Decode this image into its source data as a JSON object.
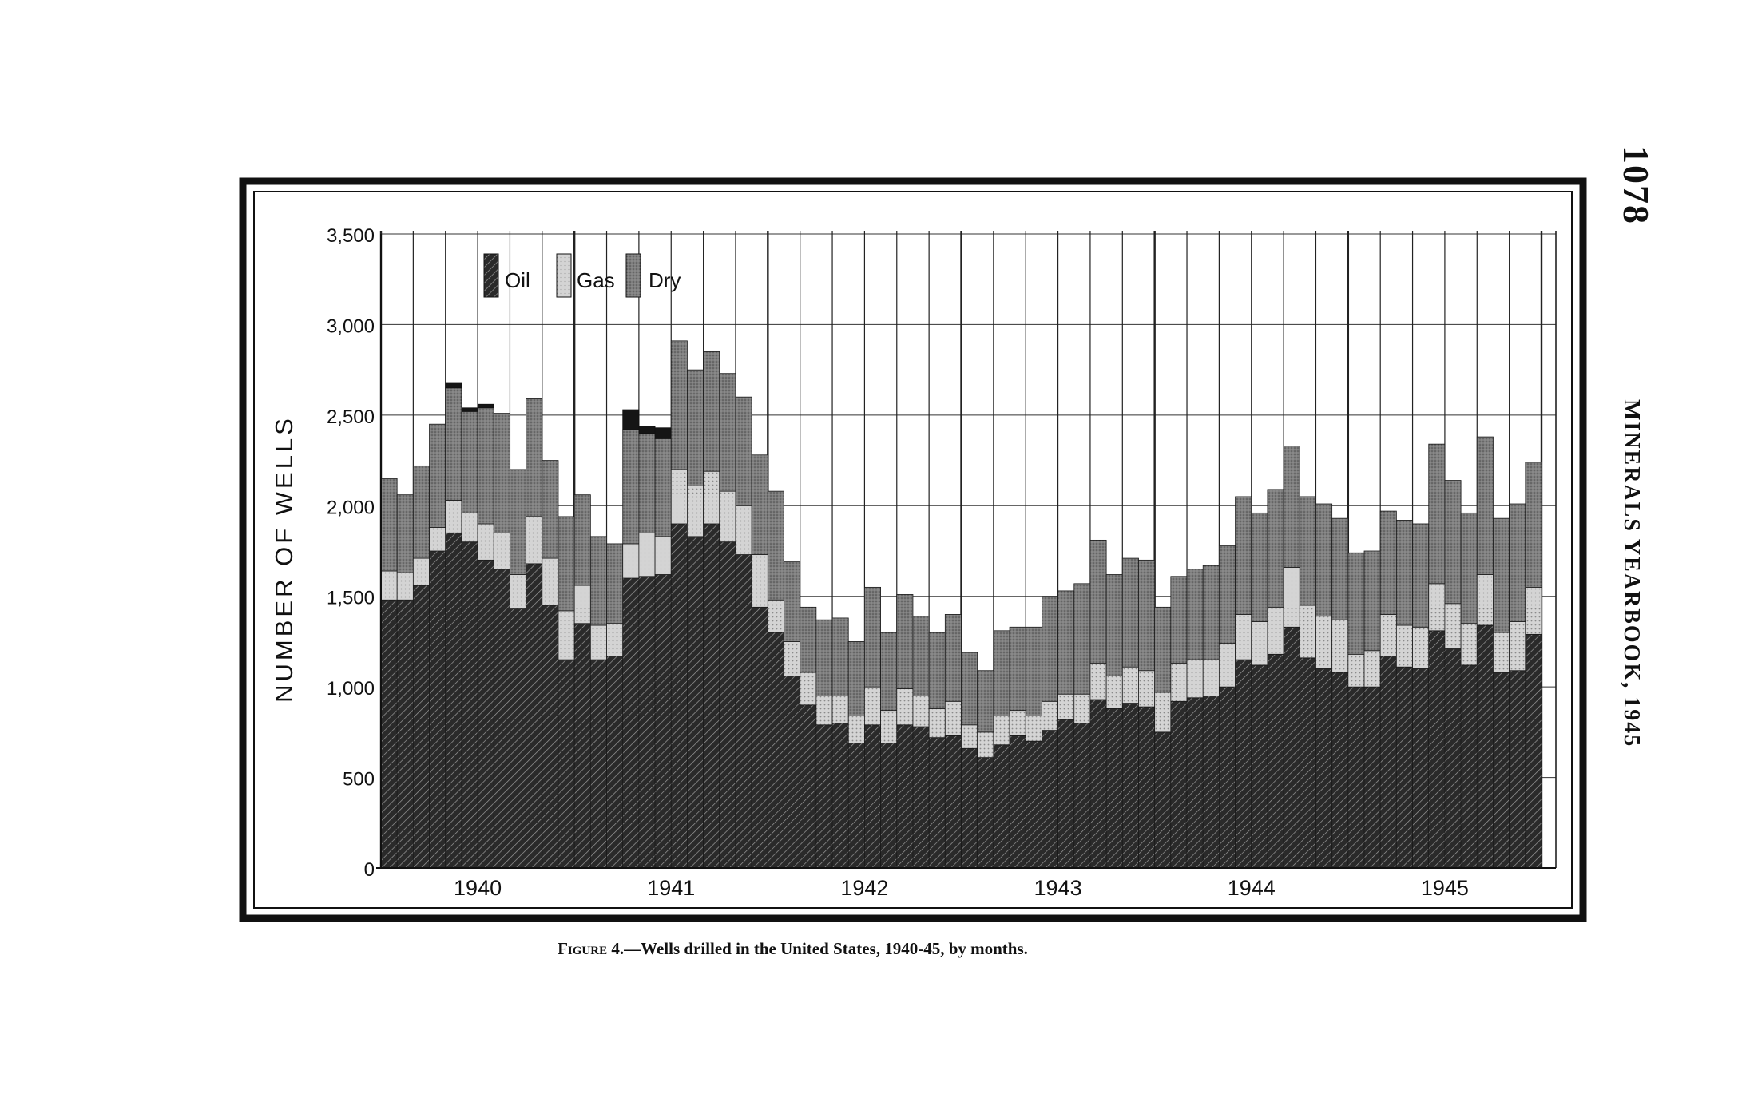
{
  "page": {
    "page_number": "1078",
    "running_head": "MINERALS YEARBOOK, 1945",
    "caption_label": "Figure 4.",
    "caption_text": "—Wells drilled in the United States, 1940-45, by months."
  },
  "colors": {
    "oil": "#1a1a1a",
    "gas": "#c8c8c8",
    "dry": "#777777",
    "frame": "#111111",
    "grid": "#222222"
  },
  "chart_data": {
    "type": "bar",
    "stacked": true,
    "ylabel": "NUMBER OF WELLS",
    "xlabel": "",
    "ylim": [
      0,
      3500
    ],
    "yticks": [
      0,
      500,
      1000,
      1500,
      2000,
      2500,
      3000,
      3500
    ],
    "ytick_labels": [
      "0",
      "500",
      "1,000",
      "1,500",
      "2,000",
      "2,500",
      "3,000",
      "3,500"
    ],
    "year_labels": [
      "1940",
      "1941",
      "1942",
      "1943",
      "1944",
      "1945"
    ],
    "grid": true,
    "legend_position": "top-left",
    "categories": [
      "1940-01",
      "1940-02",
      "1940-03",
      "1940-04",
      "1940-05",
      "1940-06",
      "1940-07",
      "1940-08",
      "1940-09",
      "1940-10",
      "1940-11",
      "1940-12",
      "1941-01",
      "1941-02",
      "1941-03",
      "1941-04",
      "1941-05",
      "1941-06",
      "1941-07",
      "1941-08",
      "1941-09",
      "1941-10",
      "1941-11",
      "1941-12",
      "1942-01",
      "1942-02",
      "1942-03",
      "1942-04",
      "1942-05",
      "1942-06",
      "1942-07",
      "1942-08",
      "1942-09",
      "1942-10",
      "1942-11",
      "1942-12",
      "1943-01",
      "1943-02",
      "1943-03",
      "1943-04",
      "1943-05",
      "1943-06",
      "1943-07",
      "1943-08",
      "1943-09",
      "1943-10",
      "1943-11",
      "1943-12",
      "1944-01",
      "1944-02",
      "1944-03",
      "1944-04",
      "1944-05",
      "1944-06",
      "1944-07",
      "1944-08",
      "1944-09",
      "1944-10",
      "1944-11",
      "1944-12",
      "1945-01",
      "1945-02",
      "1945-03",
      "1945-04",
      "1945-05",
      "1945-06",
      "1945-07",
      "1945-08",
      "1945-09",
      "1945-10",
      "1945-11",
      "1945-12"
    ],
    "series": [
      {
        "name": "Oil",
        "values": [
          1480,
          1480,
          1560,
          1750,
          1850,
          1800,
          1700,
          1650,
          1430,
          1680,
          1450,
          1150,
          1350,
          1150,
          1170,
          1600,
          1610,
          1620,
          1900,
          1830,
          1900,
          1800,
          1730,
          1440,
          1300,
          1060,
          900,
          790,
          800,
          690,
          790,
          690,
          790,
          780,
          720,
          730,
          660,
          610,
          680,
          730,
          700,
          760,
          820,
          800,
          930,
          880,
          910,
          890,
          750,
          920,
          940,
          950,
          1000,
          1150,
          1120,
          1180,
          1330,
          1160,
          1100,
          1080,
          1000,
          1000,
          1170,
          1110,
          1100,
          1310,
          1210,
          1120,
          1340,
          1080,
          1090,
          1290
        ]
      },
      {
        "name": "Gas",
        "values": [
          160,
          150,
          150,
          130,
          180,
          160,
          200,
          200,
          190,
          260,
          260,
          270,
          210,
          190,
          180,
          190,
          240,
          210,
          300,
          280,
          290,
          280,
          270,
          290,
          180,
          190,
          180,
          160,
          150,
          150,
          210,
          180,
          200,
          170,
          160,
          190,
          130,
          140,
          160,
          140,
          140,
          160,
          140,
          160,
          200,
          180,
          200,
          200,
          220,
          210,
          210,
          200,
          240,
          250,
          240,
          260,
          330,
          290,
          290,
          290,
          180,
          200,
          230,
          230,
          230,
          260,
          250,
          230,
          280,
          220,
          270,
          260
        ]
      },
      {
        "name": "Dry",
        "values": [
          510,
          430,
          510,
          570,
          620,
          560,
          640,
          660,
          580,
          650,
          540,
          520,
          500,
          490,
          440,
          630,
          550,
          540,
          710,
          640,
          660,
          650,
          600,
          550,
          600,
          440,
          360,
          420,
          430,
          410,
          550,
          430,
          520,
          440,
          420,
          480,
          400,
          340,
          470,
          460,
          490,
          580,
          570,
          610,
          680,
          560,
          600,
          610,
          470,
          480,
          500,
          520,
          540,
          650,
          600,
          650,
          670,
          600,
          620,
          560,
          560,
          550,
          570,
          580,
          570,
          770,
          680,
          610,
          760,
          630,
          650,
          690
        ]
      }
    ],
    "annotated_peaks": {
      "categories": [
        "1940-05",
        "1940-06",
        "1940-07",
        "1941-04",
        "1941-05",
        "1941-06"
      ],
      "extra": [
        30,
        20,
        20,
        110,
        40,
        60
      ]
    }
  }
}
